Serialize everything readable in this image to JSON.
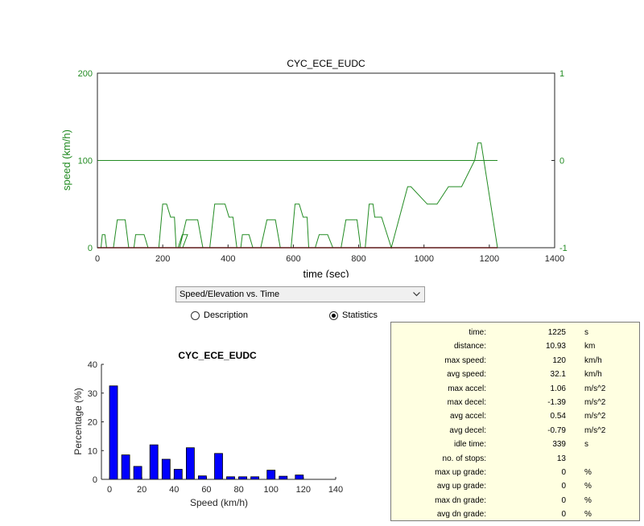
{
  "main_chart": {
    "title": "CYC_ECE_EUDC",
    "xlabel": "time (sec)",
    "ylabel": "speed (km/h)",
    "x_ticks": [
      "0",
      "200",
      "400",
      "600",
      "800",
      "1000",
      "1200",
      "1400"
    ],
    "y_left_ticks": [
      "0",
      "100",
      "200"
    ],
    "y_right_ticks": [
      "-1",
      "0",
      "1"
    ]
  },
  "dropdown": {
    "selected": "Speed/Elevation vs. Time"
  },
  "radios": {
    "description_label": "Description",
    "statistics_label": "Statistics",
    "selected": "Statistics"
  },
  "histogram": {
    "title": "CYC_ECE_EUDC",
    "xlabel": "Speed (km/h)",
    "ylabel": "Percentage (%)",
    "x_ticks": [
      "0",
      "20",
      "40",
      "60",
      "80",
      "100",
      "120",
      "140"
    ],
    "y_ticks": [
      "0",
      "10",
      "20",
      "30",
      "40"
    ]
  },
  "stats": [
    {
      "label": "time:",
      "value": "1225",
      "unit": "s"
    },
    {
      "label": "distance:",
      "value": "10.93",
      "unit": "km"
    },
    {
      "label": "max speed:",
      "value": "120",
      "unit": "km/h"
    },
    {
      "label": "avg speed:",
      "value": "32.1",
      "unit": "km/h"
    },
    {
      "label": "max accel:",
      "value": "1.06",
      "unit": "m/s^2"
    },
    {
      "label": "max decel:",
      "value": "-1.39",
      "unit": "m/s^2"
    },
    {
      "label": "avg accel:",
      "value": "0.54",
      "unit": "m/s^2"
    },
    {
      "label": "avg decel:",
      "value": "-0.79",
      "unit": "m/s^2"
    },
    {
      "label": "idle time:",
      "value": "339",
      "unit": "s"
    },
    {
      "label": "no. of stops:",
      "value": "13",
      "unit": ""
    },
    {
      "label": "max up grade:",
      "value": "0",
      "unit": "%"
    },
    {
      "label": "avg up grade:",
      "value": "0",
      "unit": "%"
    },
    {
      "label": "max dn grade:",
      "value": "0",
      "unit": "%"
    },
    {
      "label": "avg dn grade:",
      "value": "0",
      "unit": "%"
    }
  ],
  "colors": {
    "speed": "#228b22",
    "elevation": "#228b22",
    "grade": "#cc0000",
    "bars": "#0000ff",
    "stats_bg": "#ffffe1"
  },
  "chart_data": [
    {
      "type": "line",
      "title": "CYC_ECE_EUDC",
      "xlabel": "time (sec)",
      "ylabel": "speed (km/h)",
      "xlim": [
        0,
        1400
      ],
      "ylim": [
        0,
        200
      ],
      "y2lim": [
        -1,
        1
      ],
      "grid": false,
      "series": [
        {
          "axis": "left",
          "x": [
            0,
            11,
            15,
            23,
            28,
            49,
            61,
            85,
            96,
            112,
            117,
            143,
            155,
            188,
            200,
            212,
            224,
            236,
            241,
            261,
            276,
            260,
            247,
            252,
            272,
            307,
            323,
            344,
            359,
            391,
            403,
            415,
            427,
            439,
            444,
            464,
            476,
            500,
            519,
            545,
            560,
            593,
            605,
            618,
            630,
            642,
            647,
            667,
            679,
            705,
            721,
            746,
            761,
            795,
            806,
            820,
            832,
            844,
            849,
            870,
            900,
            950,
            960,
            1010,
            1040,
            1075,
            1115,
            1155,
            1165,
            1175,
            1225
          ],
          "y": [
            0,
            0,
            15,
            15,
            0,
            0,
            32,
            32,
            0,
            0,
            15,
            15,
            0,
            0,
            50,
            50,
            35,
            35,
            0,
            0,
            15,
            15,
            0,
            0,
            32,
            32,
            0,
            0,
            50,
            50,
            35,
            35,
            0,
            0,
            15,
            15,
            0,
            0,
            32,
            32,
            0,
            0,
            50,
            50,
            35,
            35,
            0,
            0,
            15,
            15,
            0,
            0,
            32,
            32,
            0,
            0,
            50,
            50,
            35,
            35,
            0,
            70,
            70,
            50,
            50,
            70,
            70,
            100,
            120,
            120,
            0
          ]
        },
        {
          "axis": "right",
          "x": [
            0,
            1225
          ],
          "y": [
            0,
            0
          ]
        },
        {
          "axis": "left",
          "x": [
            0,
            1225
          ],
          "y": [
            0,
            0
          ]
        }
      ]
    },
    {
      "type": "bar",
      "title": "CYC_ECE_EUDC",
      "xlabel": "Speed (km/h)",
      "ylabel": "Percentage (%)",
      "xlim": [
        -5,
        140
      ],
      "ylim": [
        0,
        40
      ],
      "grid": false,
      "categories": [
        2.5,
        10,
        17.5,
        27.5,
        35,
        42.5,
        50,
        57.5,
        67.5,
        75,
        82.5,
        90,
        100,
        107.5,
        117.5
      ],
      "values": [
        32.5,
        8.5,
        4.5,
        12,
        7,
        3.5,
        11,
        1.2,
        9,
        0.9,
        0.9,
        0.9,
        3.2,
        1.1,
        1.5
      ]
    }
  ]
}
